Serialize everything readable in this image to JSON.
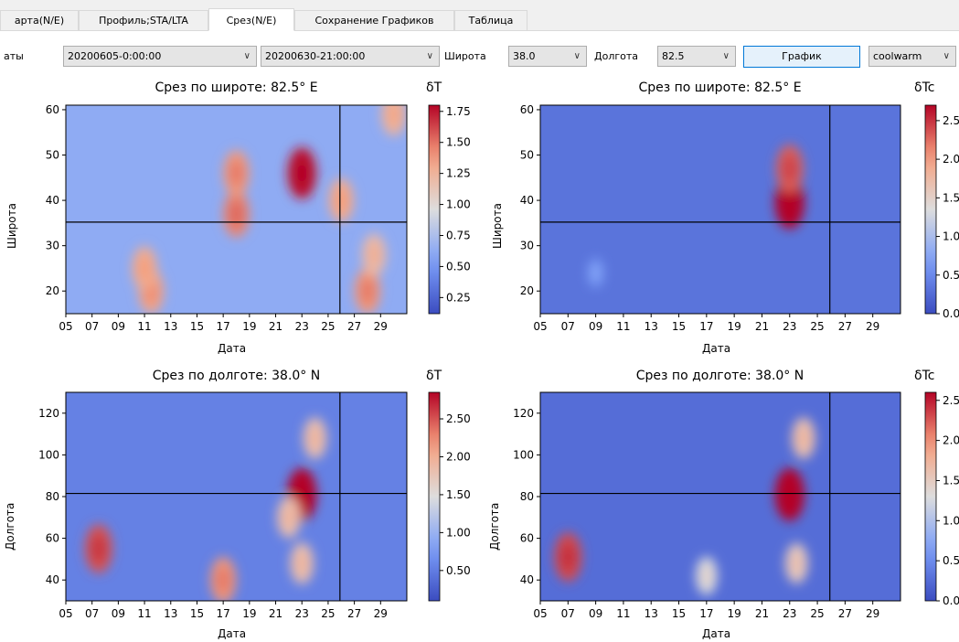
{
  "tabs": [
    {
      "label": "арта(N/E)",
      "active": false
    },
    {
      "label": "Профиль;STA/LTA",
      "active": false
    },
    {
      "label": "Срез(N/E)",
      "active": true
    },
    {
      "label": "Сохранение Графиков",
      "active": false
    },
    {
      "label": "Таблица",
      "active": false
    }
  ],
  "controls": {
    "dates_label": "аты",
    "start_date": "20200605-0:00:00",
    "end_date": "20200630-21:00:00",
    "lat_label": "Широта",
    "lat_value": "38.0",
    "lon_label": "Долгота",
    "lon_value": "82.5",
    "plot_button": "График",
    "colormap": "coolwarm"
  },
  "icons": {
    "dropdown": "chevron-down-icon"
  },
  "colors": {
    "cmap_low": "#3b4cc0",
    "cmap_mid": "#dddddd",
    "cmap_high": "#b40426",
    "active_button_border": "#0078d7"
  },
  "chart_data": [
    {
      "type": "heatmap",
      "title": "Срез по широте: 82.5° E",
      "xlabel": "Дата",
      "ylabel": "Широта",
      "colorbar_label": "δT",
      "xticks": [
        "05",
        "07",
        "09",
        "11",
        "13",
        "15",
        "17",
        "19",
        "21",
        "23",
        "25",
        "27",
        "29"
      ],
      "yticks": [
        20,
        30,
        40,
        50,
        60
      ],
      "ylim": [
        15,
        61
      ],
      "colorbar_ticks": [
        0.25,
        0.5,
        0.75,
        1.0,
        1.25,
        1.5,
        1.75
      ],
      "colorbar_range": [
        0.12,
        1.8
      ],
      "crosshair": {
        "x": 25.9,
        "y": 35.2
      },
      "hotspots": [
        {
          "x": 23.0,
          "y": 46.0,
          "value": 1.75
        },
        {
          "x": 18.0,
          "y": 37.0,
          "value": 1.45
        },
        {
          "x": 18.0,
          "y": 46.0,
          "value": 1.4
        },
        {
          "x": 11.5,
          "y": 20.0,
          "value": 1.35
        },
        {
          "x": 11.0,
          "y": 25.0,
          "value": 1.3
        },
        {
          "x": 28.0,
          "y": 20.0,
          "value": 1.4
        },
        {
          "x": 28.5,
          "y": 28.0,
          "value": 1.2
        },
        {
          "x": 30.0,
          "y": 59.0,
          "value": 1.25
        },
        {
          "x": 26.0,
          "y": 40.0,
          "value": 1.3
        }
      ]
    },
    {
      "type": "heatmap",
      "title": "Срез по широте: 82.5° E",
      "xlabel": "Дата",
      "ylabel": "Широта",
      "colorbar_label": "δTc",
      "xticks": [
        "05",
        "07",
        "09",
        "11",
        "13",
        "15",
        "17",
        "19",
        "21",
        "23",
        "25",
        "27",
        "29"
      ],
      "yticks": [
        20,
        30,
        40,
        50,
        60
      ],
      "ylim": [
        15,
        61
      ],
      "colorbar_ticks": [
        "0.0",
        "0.5",
        "1.0",
        "1.5",
        "2.0",
        "2.5"
      ],
      "colorbar_range": [
        0.0,
        2.7
      ],
      "crosshair": {
        "x": 25.9,
        "y": 35.2
      },
      "hotspots": [
        {
          "x": 23.0,
          "y": 39.5,
          "value": 2.7
        },
        {
          "x": 23.0,
          "y": 47.0,
          "value": 2.3
        },
        {
          "x": 9.0,
          "y": 24.0,
          "value": 0.6
        }
      ]
    },
    {
      "type": "heatmap",
      "title": "Срез по долготе: 38.0° N",
      "xlabel": "Дата",
      "ylabel": "Долгота",
      "colorbar_label": "δT",
      "xticks": [
        "05",
        "07",
        "09",
        "11",
        "13",
        "15",
        "17",
        "19",
        "21",
        "23",
        "25",
        "27",
        "29"
      ],
      "yticks": [
        40,
        60,
        80,
        100,
        120
      ],
      "ylim": [
        30,
        130
      ],
      "colorbar_ticks": [
        0.5,
        1.0,
        1.5,
        2.0,
        2.5
      ],
      "colorbar_range": [
        0.1,
        2.85
      ],
      "crosshair": {
        "x": 25.9,
        "y": 81.5
      },
      "hotspots": [
        {
          "x": 23.0,
          "y": 81.0,
          "value": 2.85
        },
        {
          "x": 7.5,
          "y": 55.0,
          "value": 2.5
        },
        {
          "x": 17.0,
          "y": 40.0,
          "value": 2.2
        },
        {
          "x": 24.0,
          "y": 108.0,
          "value": 1.8
        },
        {
          "x": 23.0,
          "y": 48.0,
          "value": 1.8
        },
        {
          "x": 22.0,
          "y": 70.0,
          "value": 1.8
        }
      ]
    },
    {
      "type": "heatmap",
      "title": "Срез по долготе: 38.0° N",
      "xlabel": "Дата",
      "ylabel": "Долгота",
      "colorbar_label": "δTc",
      "xticks": [
        "05",
        "07",
        "09",
        "11",
        "13",
        "15",
        "17",
        "19",
        "21",
        "23",
        "25",
        "27",
        "29"
      ],
      "yticks": [
        40,
        60,
        80,
        100,
        120
      ],
      "ylim": [
        30,
        130
      ],
      "colorbar_ticks": [
        "0.0",
        "0.5",
        "1.0",
        "1.5",
        "2.0",
        "2.5"
      ],
      "colorbar_range": [
        0.0,
        2.6
      ],
      "crosshair": {
        "x": 25.9,
        "y": 81.5
      },
      "hotspots": [
        {
          "x": 23.0,
          "y": 81.0,
          "value": 2.6
        },
        {
          "x": 7.0,
          "y": 51.0,
          "value": 2.3
        },
        {
          "x": 24.0,
          "y": 108.0,
          "value": 1.6
        },
        {
          "x": 23.5,
          "y": 48.0,
          "value": 1.5
        },
        {
          "x": 17.0,
          "y": 42.0,
          "value": 1.3
        }
      ]
    }
  ]
}
